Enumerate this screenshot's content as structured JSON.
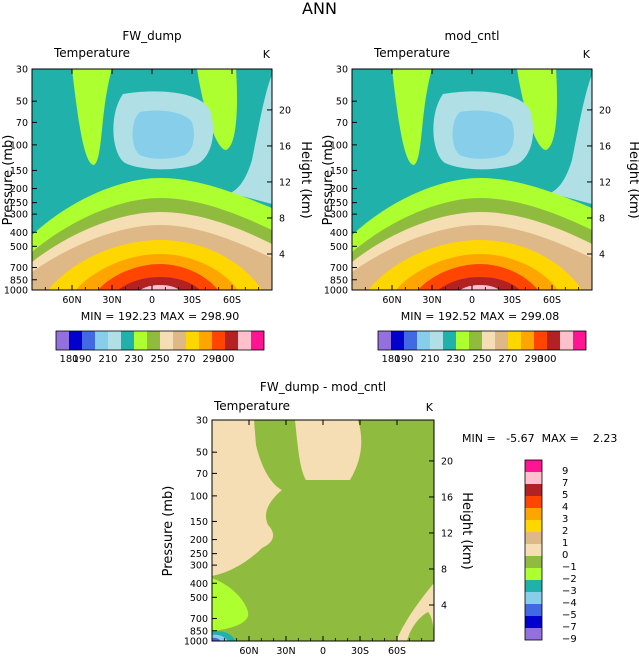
{
  "page_title": "ANN",
  "colors": {
    "c180": "#9370db",
    "c190": "#0000cd",
    "c200": "#4169e1",
    "c210": "#87ceeb",
    "c220": "#b0e0e6",
    "c230": "#20b2aa",
    "c240": "#adff2f",
    "c250": "#8fbc3f",
    "c260": "#f5deb3",
    "c270": "#deb887",
    "c280": "#ffd700",
    "c290": "#ffa500",
    "c300": "#ff4500",
    "c310": "#b22222",
    "c320": "#ffc0cb",
    "c330": "#ff1493",
    "d_neg9": "#9370db",
    "d_neg7": "#0000cd",
    "d_neg5": "#4169e1",
    "d_neg4": "#87ceeb",
    "d_neg3": "#20b2aa",
    "d_neg2": "#adff2f",
    "d_neg1": "#8fbc3f",
    "d_0": "#f5deb3"
  },
  "chart_data": [
    {
      "id": "fw",
      "type": "contour",
      "title": "FW_dump",
      "variable": "Temperature",
      "units": "K",
      "xlabel": "",
      "ylabel": "Pressure (mb)",
      "y2label": "Height (km)",
      "x_ticks": [
        "60N",
        "30N",
        "0",
        "30S",
        "60S"
      ],
      "x_tick_lat": [
        60,
        30,
        0,
        -30,
        -60
      ],
      "xlim": [
        90,
        -90
      ],
      "y_ticks": [
        "30",
        "50",
        "70",
        "100",
        "150",
        "200",
        "250",
        "300",
        "400",
        "500",
        "700",
        "850",
        "1000"
      ],
      "y_tick_p": [
        30,
        50,
        70,
        100,
        150,
        200,
        250,
        300,
        400,
        500,
        700,
        850,
        1000
      ],
      "ylim": [
        30,
        1000
      ],
      "y2_ticks": [
        "20",
        "16",
        "12",
        "8",
        "4"
      ],
      "y2_tick_km": [
        20,
        16,
        12,
        8,
        4
      ],
      "stats": "MIN = 192.23   MAX = 298.90",
      "colorbar_labels": [
        "180",
        "190",
        "210",
        "230",
        "250",
        "270",
        "290",
        "300"
      ]
    },
    {
      "id": "mc",
      "type": "contour",
      "title": "mod_cntl",
      "variable": "Temperature",
      "units": "K",
      "xlabel": "",
      "ylabel": "Pressure (mb)",
      "y2label": "Height (km)",
      "x_ticks": [
        "60N",
        "30N",
        "0",
        "30S",
        "60S"
      ],
      "x_tick_lat": [
        60,
        30,
        0,
        -30,
        -60
      ],
      "xlim": [
        90,
        -90
      ],
      "y_ticks": [
        "30",
        "50",
        "70",
        "100",
        "150",
        "200",
        "250",
        "300",
        "400",
        "500",
        "700",
        "850",
        "1000"
      ],
      "y_tick_p": [
        30,
        50,
        70,
        100,
        150,
        200,
        250,
        300,
        400,
        500,
        700,
        850,
        1000
      ],
      "ylim": [
        30,
        1000
      ],
      "y2_ticks": [
        "20",
        "16",
        "12",
        "8",
        "4"
      ],
      "y2_tick_km": [
        20,
        16,
        12,
        8,
        4
      ],
      "stats": "MIN = 192.52   MAX = 299.08",
      "colorbar_labels": [
        "180",
        "190",
        "210",
        "230",
        "250",
        "270",
        "290",
        "300"
      ]
    },
    {
      "id": "diff",
      "type": "contour",
      "title": "FW_dump - mod_cntl",
      "variable": "Temperature",
      "units": "K",
      "xlabel": "",
      "ylabel": "Pressure (mb)",
      "y2label": "Height (km)",
      "x_ticks": [
        "60N",
        "30N",
        "0",
        "30S",
        "60S"
      ],
      "x_tick_lat": [
        60,
        30,
        0,
        -30,
        -60
      ],
      "xlim": [
        90,
        -90
      ],
      "y_ticks": [
        "30",
        "50",
        "70",
        "100",
        "150",
        "200",
        "250",
        "300",
        "400",
        "500",
        "700",
        "850",
        "1000"
      ],
      "y_tick_p": [
        30,
        50,
        70,
        100,
        150,
        200,
        250,
        300,
        400,
        500,
        700,
        850,
        1000
      ],
      "ylim": [
        30,
        1000
      ],
      "y2_ticks": [
        "20",
        "16",
        "12",
        "8",
        "4"
      ],
      "y2_tick_km": [
        20,
        16,
        12,
        8,
        4
      ],
      "stats": "MIN =   -5.67  MAX =    2.23",
      "colorbar_labels": [
        "9",
        "7",
        "5",
        "4",
        "3",
        "2",
        "1",
        "0",
        "-1",
        "-2",
        "-3",
        "-4",
        "-5",
        "-7",
        "-9"
      ]
    }
  ]
}
